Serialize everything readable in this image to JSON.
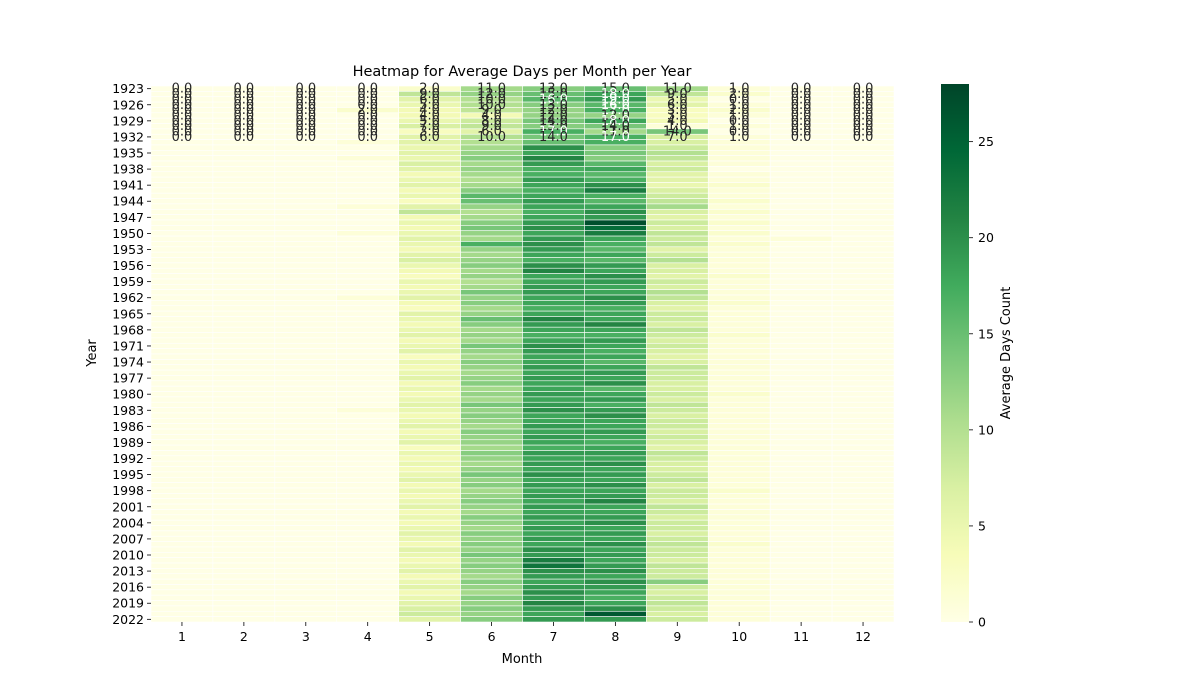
{
  "chart_data": {
    "type": "heatmap",
    "title": "Heatmap for Average Days per Month per Year",
    "xlabel": "Month",
    "ylabel": "Year",
    "x_categories": [
      "1",
      "2",
      "3",
      "4",
      "5",
      "6",
      "7",
      "8",
      "9",
      "10",
      "11",
      "12"
    ],
    "year_range": [
      1923,
      2022
    ],
    "y_tick_labels": [
      "1923",
      "1926",
      "1929",
      "1932",
      "1935",
      "1938",
      "1941",
      "1944",
      "1947",
      "1950",
      "1953",
      "1956",
      "1959",
      "1962",
      "1965",
      "1968",
      "1971",
      "1974",
      "1977",
      "1980",
      "1983",
      "1986",
      "1989",
      "1992",
      "1995",
      "1998",
      "2001",
      "2004",
      "2007",
      "2010",
      "2013",
      "2016",
      "2019",
      "2022"
    ],
    "colorbar": {
      "label": "Average Days Count",
      "range": [
        0,
        28
      ],
      "ticks": [
        0,
        5,
        10,
        15,
        20,
        25
      ]
    },
    "colormap": "YlGn",
    "colors": {
      "low": "#ffffe5",
      "high": "#004529"
    },
    "values": [
      [
        0,
        0,
        0,
        0,
        2,
        11,
        13,
        15,
        11,
        1,
        0,
        0
      ],
      [
        0,
        0,
        0,
        0,
        9,
        12,
        15,
        18,
        9,
        2,
        0,
        0
      ],
      [
        0,
        0,
        0,
        0,
        6,
        10,
        16,
        19,
        5,
        0,
        0,
        0
      ],
      [
        0,
        0,
        0,
        0,
        5,
        10,
        13,
        16,
        6,
        1,
        0,
        0
      ],
      [
        0,
        0,
        0,
        2,
        4,
        9,
        12,
        17,
        3,
        2,
        0,
        0
      ],
      [
        0,
        0,
        0,
        0,
        4,
        4,
        12,
        12,
        3,
        1,
        0,
        0
      ],
      [
        0,
        0,
        0,
        0,
        5,
        8,
        14,
        18,
        4,
        0,
        0,
        0
      ],
      [
        0,
        0,
        0,
        0,
        7,
        9,
        13,
        14,
        1,
        1,
        0,
        0
      ],
      [
        0,
        0,
        0,
        0,
        3,
        6,
        17,
        11,
        14,
        0,
        0,
        0
      ],
      [
        0,
        0,
        0,
        0,
        6,
        10,
        14,
        17,
        7,
        1,
        0,
        0
      ],
      [
        0,
        0,
        0,
        1,
        6,
        10,
        15,
        17,
        7,
        1,
        0,
        0
      ],
      [
        0,
        0,
        0,
        0,
        5,
        11,
        20,
        13,
        8,
        1,
        0,
        0
      ],
      [
        0,
        0,
        0,
        0,
        6,
        12,
        18,
        14,
        10,
        1,
        0,
        0
      ],
      [
        0,
        0,
        0,
        1,
        5,
        13,
        21,
        13,
        9,
        1,
        0,
        0
      ],
      [
        0,
        0,
        0,
        0,
        7,
        11,
        19,
        16,
        7,
        1,
        0,
        0
      ],
      [
        0,
        0,
        0,
        0,
        6,
        12,
        17,
        18,
        8,
        0,
        0,
        0
      ],
      [
        0,
        0,
        0,
        0,
        4,
        11,
        17,
        16,
        6,
        1,
        0,
        0
      ],
      [
        0,
        0,
        0,
        0,
        5,
        10,
        19,
        17,
        6,
        1,
        0,
        0
      ],
      [
        0,
        0,
        0,
        0,
        6,
        11,
        18,
        20,
        5,
        2,
        0,
        0
      ],
      [
        0,
        0,
        0,
        0,
        4,
        13,
        17,
        22,
        7,
        1,
        0,
        0
      ],
      [
        0,
        0,
        0,
        0,
        5,
        16,
        18,
        17,
        8,
        1,
        0,
        0
      ],
      [
        0,
        0,
        0,
        0,
        3,
        15,
        19,
        16,
        9,
        2,
        0,
        0
      ],
      [
        0,
        0,
        0,
        1,
        6,
        12,
        18,
        18,
        11,
        1,
        0,
        0
      ],
      [
        0,
        0,
        0,
        0,
        9,
        10,
        17,
        20,
        7,
        2,
        0,
        0
      ],
      [
        0,
        0,
        0,
        0,
        4,
        11,
        18,
        19,
        6,
        1,
        0,
        0
      ],
      [
        0,
        0,
        0,
        0,
        5,
        13,
        19,
        27,
        8,
        2,
        0,
        0
      ],
      [
        0,
        0,
        0,
        0,
        4,
        14,
        20,
        24,
        7,
        1,
        0,
        0
      ],
      [
        0,
        0,
        0,
        1,
        5,
        12,
        18,
        22,
        9,
        2,
        0,
        0
      ],
      [
        0,
        0,
        0,
        0,
        6,
        11,
        19,
        18,
        8,
        1,
        1,
        0
      ],
      [
        0,
        0,
        0,
        0,
        5,
        17,
        20,
        17,
        9,
        2,
        0,
        0
      ],
      [
        0,
        0,
        0,
        0,
        4,
        12,
        19,
        16,
        6,
        1,
        0,
        0
      ],
      [
        0,
        0,
        0,
        0,
        6,
        11,
        18,
        18,
        8,
        1,
        0,
        0
      ],
      [
        0,
        0,
        0,
        0,
        7,
        12,
        17,
        16,
        10,
        1,
        0,
        0
      ],
      [
        0,
        0,
        0,
        0,
        5,
        13,
        20,
        19,
        7,
        1,
        0,
        0
      ],
      [
        0,
        0,
        0,
        0,
        4,
        11,
        21,
        18,
        7,
        1,
        0,
        0
      ],
      [
        0,
        0,
        0,
        0,
        3,
        12,
        18,
        20,
        6,
        2,
        0,
        0
      ],
      [
        0,
        0,
        0,
        0,
        5,
        10,
        18,
        19,
        8,
        1,
        0,
        0
      ],
      [
        0,
        0,
        0,
        0,
        4,
        11,
        19,
        18,
        7,
        1,
        0,
        0
      ],
      [
        0,
        0,
        0,
        0,
        5,
        14,
        19,
        18,
        10,
        1,
        0,
        0
      ],
      [
        0,
        0,
        0,
        1,
        6,
        12,
        18,
        20,
        9,
        1,
        0,
        0
      ],
      [
        0,
        0,
        0,
        0,
        4,
        13,
        18,
        19,
        7,
        2,
        0,
        0
      ],
      [
        0,
        0,
        0,
        0,
        3,
        11,
        17,
        17,
        6,
        1,
        0,
        0
      ],
      [
        0,
        0,
        0,
        0,
        6,
        12,
        18,
        18,
        8,
        1,
        0,
        0
      ],
      [
        0,
        0,
        0,
        0,
        5,
        15,
        21,
        18,
        8,
        1,
        0,
        0
      ],
      [
        0,
        0,
        0,
        0,
        4,
        13,
        19,
        21,
        7,
        1,
        0,
        0
      ],
      [
        0,
        0,
        0,
        0,
        5,
        11,
        18,
        18,
        9,
        1,
        0,
        0
      ],
      [
        0,
        0,
        0,
        0,
        6,
        12,
        17,
        17,
        8,
        2,
        0,
        0
      ],
      [
        0,
        0,
        0,
        0,
        4,
        11,
        18,
        19,
        7,
        1,
        0,
        0
      ],
      [
        0,
        0,
        0,
        0,
        5,
        14,
        20,
        18,
        8,
        1,
        0,
        0
      ],
      [
        0,
        0,
        0,
        0,
        6,
        12,
        19,
        17,
        7,
        1,
        0,
        0
      ],
      [
        0,
        0,
        0,
        0,
        3,
        11,
        18,
        18,
        6,
        1,
        0,
        0
      ],
      [
        0,
        0,
        0,
        0,
        5,
        13,
        18,
        16,
        7,
        1,
        0,
        0
      ],
      [
        0,
        0,
        0,
        0,
        4,
        12,
        19,
        18,
        9,
        1,
        0,
        0
      ],
      [
        0,
        0,
        0,
        0,
        5,
        11,
        18,
        19,
        8,
        1,
        0,
        0
      ],
      [
        0,
        0,
        0,
        0,
        6,
        12,
        19,
        18,
        8,
        1,
        0,
        0
      ],
      [
        0,
        0,
        0,
        0,
        4,
        13,
        18,
        20,
        7,
        1,
        0,
        0
      ],
      [
        0,
        0,
        0,
        0,
        5,
        11,
        18,
        16,
        7,
        1,
        0,
        0
      ],
      [
        0,
        0,
        0,
        0,
        4,
        12,
        19,
        18,
        8,
        2,
        0,
        0
      ],
      [
        0,
        0,
        0,
        0,
        5,
        11,
        18,
        19,
        7,
        1,
        0,
        0
      ],
      [
        0,
        0,
        0,
        0,
        6,
        14,
        19,
        17,
        9,
        1,
        0,
        0
      ],
      [
        0,
        0,
        0,
        1,
        5,
        12,
        20,
        19,
        8,
        1,
        0,
        0
      ],
      [
        0,
        0,
        0,
        0,
        4,
        13,
        18,
        20,
        7,
        1,
        0,
        0
      ],
      [
        0,
        0,
        0,
        0,
        5,
        12,
        18,
        18,
        8,
        1,
        0,
        0
      ],
      [
        0,
        0,
        0,
        0,
        6,
        11,
        19,
        18,
        8,
        1,
        0,
        0
      ],
      [
        0,
        0,
        0,
        0,
        4,
        13,
        18,
        19,
        7,
        1,
        0,
        0
      ],
      [
        0,
        0,
        0,
        0,
        5,
        12,
        19,
        18,
        8,
        1,
        0,
        0
      ],
      [
        0,
        0,
        0,
        0,
        6,
        12,
        18,
        17,
        7,
        1,
        0,
        0
      ],
      [
        0,
        0,
        0,
        0,
        3,
        11,
        17,
        18,
        6,
        1,
        0,
        0
      ],
      [
        0,
        0,
        0,
        0,
        5,
        13,
        19,
        19,
        9,
        1,
        0,
        0
      ],
      [
        0,
        0,
        0,
        0,
        4,
        12,
        18,
        18,
        8,
        1,
        0,
        0
      ],
      [
        0,
        0,
        0,
        0,
        5,
        11,
        19,
        20,
        7,
        1,
        0,
        0
      ],
      [
        0,
        0,
        0,
        0,
        4,
        12,
        18,
        18,
        7,
        1,
        0,
        0
      ],
      [
        0,
        0,
        0,
        0,
        5,
        14,
        20,
        19,
        8,
        1,
        0,
        0
      ],
      [
        0,
        0,
        0,
        0,
        6,
        12,
        18,
        18,
        9,
        1,
        0,
        0
      ],
      [
        0,
        0,
        0,
        0,
        4,
        13,
        19,
        20,
        7,
        1,
        0,
        0
      ],
      [
        0,
        0,
        0,
        0,
        5,
        11,
        18,
        18,
        8,
        2,
        0,
        0
      ],
      [
        0,
        0,
        0,
        0,
        4,
        12,
        19,
        19,
        8,
        1,
        0,
        0
      ],
      [
        0,
        0,
        0,
        0,
        5,
        13,
        18,
        21,
        7,
        1,
        0,
        0
      ],
      [
        0,
        0,
        0,
        0,
        6,
        12,
        19,
        18,
        9,
        1,
        0,
        0
      ],
      [
        0,
        0,
        0,
        0,
        4,
        11,
        18,
        18,
        8,
        1,
        0,
        0
      ],
      [
        0,
        0,
        0,
        0,
        5,
        13,
        19,
        19,
        7,
        1,
        0,
        0
      ],
      [
        0,
        0,
        0,
        0,
        4,
        12,
        18,
        20,
        8,
        1,
        0,
        0
      ],
      [
        0,
        0,
        0,
        0,
        5,
        11,
        19,
        18,
        8,
        1,
        0,
        0
      ],
      [
        0,
        0,
        0,
        0,
        6,
        13,
        18,
        19,
        7,
        1,
        0,
        0
      ],
      [
        0,
        0,
        0,
        0,
        5,
        12,
        19,
        18,
        8,
        1,
        0,
        0
      ],
      [
        0,
        0,
        0,
        0,
        4,
        13,
        18,
        20,
        9,
        2,
        0,
        0
      ],
      [
        0,
        0,
        0,
        0,
        6,
        12,
        20,
        18,
        8,
        1,
        0,
        0
      ],
      [
        0,
        0,
        0,
        0,
        5,
        14,
        19,
        19,
        8,
        1,
        0,
        0
      ],
      [
        0,
        0,
        0,
        0,
        4,
        12,
        22,
        18,
        7,
        1,
        0,
        0
      ],
      [
        0,
        0,
        0,
        0,
        5,
        13,
        23,
        19,
        9,
        1,
        0,
        0
      ],
      [
        0,
        0,
        0,
        0,
        6,
        12,
        20,
        20,
        8,
        1,
        0,
        0
      ],
      [
        0,
        0,
        0,
        0,
        4,
        11,
        19,
        18,
        8,
        1,
        0,
        0
      ],
      [
        0,
        0,
        0,
        0,
        5,
        13,
        18,
        20,
        13,
        1,
        0,
        0
      ],
      [
        0,
        0,
        0,
        0,
        6,
        12,
        19,
        19,
        8,
        1,
        0,
        0
      ],
      [
        0,
        0,
        0,
        0,
        4,
        11,
        20,
        18,
        7,
        1,
        0,
        0
      ],
      [
        0,
        0,
        0,
        0,
        5,
        13,
        19,
        17,
        8,
        1,
        0,
        0
      ],
      [
        0,
        0,
        0,
        0,
        6,
        12,
        21,
        18,
        9,
        1,
        0,
        0
      ],
      [
        0,
        0,
        0,
        0,
        7,
        13,
        19,
        20,
        8,
        1,
        0,
        0
      ],
      [
        0,
        0,
        0,
        0,
        8,
        12,
        18,
        26,
        7,
        1,
        0,
        0
      ],
      [
        0,
        0,
        0,
        0,
        6,
        13,
        19,
        19,
        8,
        1,
        0,
        0
      ]
    ],
    "annotated_rows": 10
  }
}
